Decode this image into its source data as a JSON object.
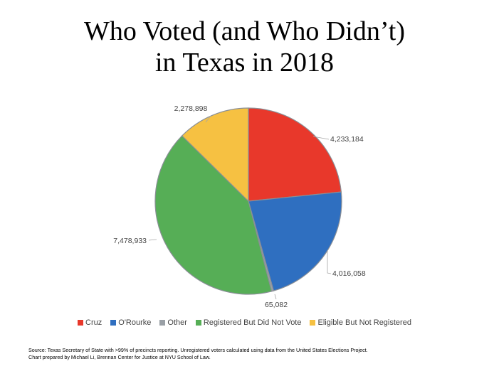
{
  "title_lines": [
    "Who Voted (and Who Didn’t)",
    "in Texas in 2018"
  ],
  "chart_data": {
    "type": "pie",
    "title": "Who Voted (and Who Didn’t) in Texas in 2018",
    "labels": [
      "Cruz",
      "O'Rourke",
      "Other",
      "Registered But Did Not Vote",
      "Eligible But Not Registered"
    ],
    "values": [
      4233184,
      4016058,
      65082,
      7478933,
      2278898
    ],
    "value_labels": [
      "4,233,184",
      "4,016,058",
      "65,082",
      "7,478,933",
      "2,278,898"
    ],
    "colors": [
      "#e8382b",
      "#2f6fc0",
      "#9aa0a6",
      "#56ae56",
      "#f6c142"
    ],
    "legend_position": "bottom"
  },
  "source_lines": [
    "Source: Texas Secretary of State with >99% of precincts reporting. Unregistered voters calculated using data from the United States Elections Project.",
    "Chart prepared by Michael Li, Brennan Center for Justice at NYU School of Law."
  ]
}
